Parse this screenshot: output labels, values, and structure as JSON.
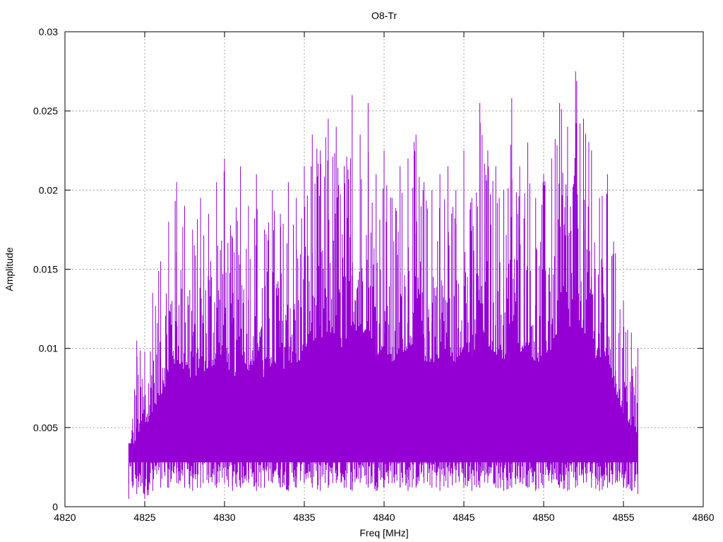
{
  "chart_data": {
    "type": "line",
    "title": "O8-Tr",
    "xlabel": "Freq [MHz]",
    "ylabel": "Amplitude",
    "xlim": [
      4820,
      4860
    ],
    "ylim": [
      0,
      0.03
    ],
    "grid": true,
    "x_ticks": [
      "4820",
      "4825",
      "4830",
      "4835",
      "4840",
      "4845",
      "4850",
      "4855",
      "4860"
    ],
    "y_ticks": [
      "0",
      "0.005",
      "0.01",
      "0.015",
      "0.02",
      "0.025",
      "0.03"
    ],
    "series": [
      {
        "name": "",
        "color": "#9400D3",
        "x": [
          4824.0,
          4824.5,
          4825.0,
          4825.5,
          4826.0,
          4826.5,
          4827.0,
          4827.5,
          4828.0,
          4828.5,
          4829.0,
          4829.5,
          4830.0,
          4830.5,
          4831.0,
          4831.5,
          4832.0,
          4832.5,
          4833.0,
          4833.5,
          4834.0,
          4834.5,
          4835.0,
          4835.5,
          4836.0,
          4836.5,
          4837.0,
          4837.5,
          4838.0,
          4838.5,
          4839.0,
          4839.5,
          4840.0,
          4840.5,
          4841.0,
          4841.5,
          4842.0,
          4842.5,
          4843.0,
          4843.5,
          4844.0,
          4844.5,
          4845.0,
          4845.5,
          4846.0,
          4846.5,
          4847.0,
          4847.5,
          4848.0,
          4848.5,
          4849.0,
          4849.5,
          4850.0,
          4850.5,
          4851.0,
          4851.5,
          4852.0,
          4852.5,
          4853.0,
          4853.5,
          4854.0,
          4854.5,
          4855.0,
          4855.5,
          4855.9
        ],
        "y": [
          0.004,
          0.0105,
          0.0098,
          0.0135,
          0.0155,
          0.018,
          0.0205,
          0.019,
          0.0175,
          0.0195,
          0.0185,
          0.0205,
          0.022,
          0.017,
          0.0215,
          0.019,
          0.021,
          0.0175,
          0.02,
          0.0185,
          0.0205,
          0.0195,
          0.0215,
          0.0235,
          0.0225,
          0.0245,
          0.024,
          0.0215,
          0.026,
          0.0235,
          0.0255,
          0.021,
          0.0225,
          0.0195,
          0.0215,
          0.022,
          0.0235,
          0.0205,
          0.02,
          0.021,
          0.0215,
          0.02,
          0.0225,
          0.0195,
          0.0255,
          0.0225,
          0.0215,
          0.02,
          0.0258,
          0.0215,
          0.023,
          0.0195,
          0.021,
          0.022,
          0.0255,
          0.024,
          0.0275,
          0.0245,
          0.0225,
          0.0195,
          0.021,
          0.016,
          0.013,
          0.011,
          0.01
        ],
        "y_min": [
          0.0005,
          0.0008,
          0.0005,
          0.001,
          0.0012,
          0.0012,
          0.0015,
          0.0012,
          0.001,
          0.0012,
          0.0015,
          0.0012,
          0.0015,
          0.001,
          0.0012,
          0.0015,
          0.001,
          0.0012,
          0.0015,
          0.0012,
          0.001,
          0.0012,
          0.0015,
          0.0012,
          0.001,
          0.0012,
          0.0015,
          0.0012,
          0.001,
          0.0015,
          0.0012,
          0.001,
          0.0012,
          0.0015,
          0.0012,
          0.001,
          0.0012,
          0.0015,
          0.0012,
          0.001,
          0.0012,
          0.0015,
          0.0012,
          0.001,
          0.0012,
          0.0015,
          0.0012,
          0.001,
          0.0012,
          0.0015,
          0.0012,
          0.001,
          0.0012,
          0.0015,
          0.0012,
          0.001,
          0.0012,
          0.0015,
          0.0012,
          0.001,
          0.0012,
          0.0015,
          0.0012,
          0.001,
          0.0008
        ]
      }
    ]
  }
}
